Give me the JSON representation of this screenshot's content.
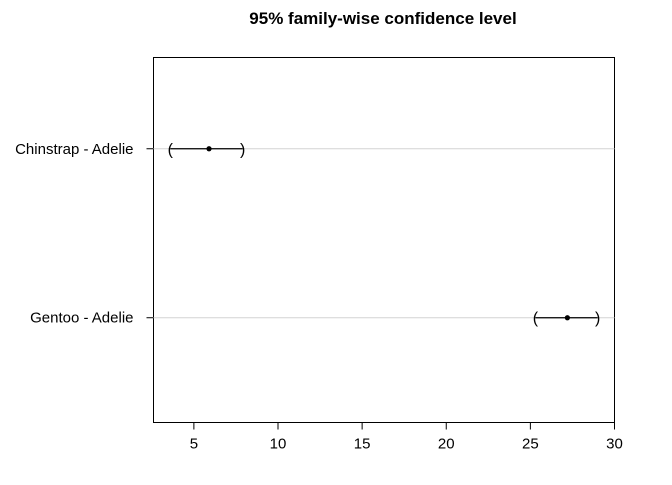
{
  "chart_data": {
    "type": "scatter",
    "title": "95% family-wise confidence level",
    "xlabel": "",
    "ylabel": "",
    "xlim": [
      2.6,
      30
    ],
    "xticks": [
      5,
      10,
      15,
      20,
      25,
      30
    ],
    "grid": "horizontal reference lines at each comparison",
    "series": [
      {
        "values": [
          {
            "label": "Chinstrap - Adelie",
            "estimate": 5.9,
            "lower": 3.6,
            "upper": 7.9
          },
          {
            "label": "Gentoo - Adelie",
            "estimate": 27.2,
            "lower": 25.3,
            "upper": 29.0
          }
        ]
      }
    ],
    "colors": {
      "point": "#000000",
      "interval": "#000000",
      "reference_line": "#d3d3d3",
      "axis": "#000000"
    }
  }
}
